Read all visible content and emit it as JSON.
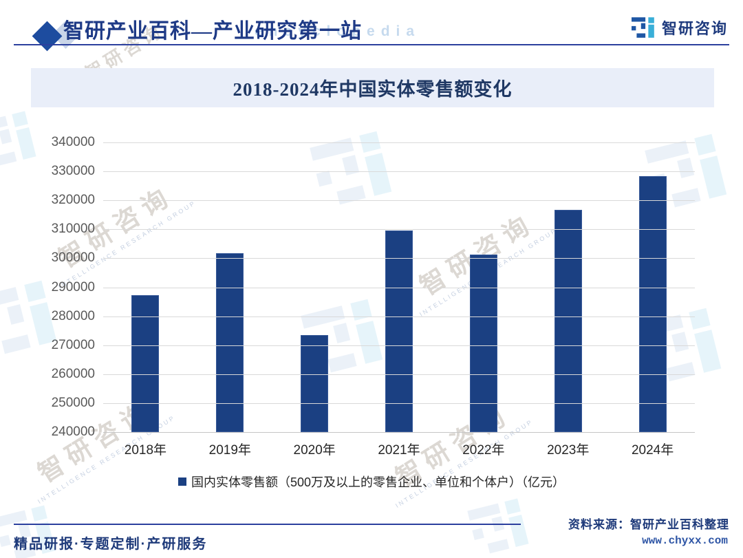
{
  "header": {
    "brand_title": "智研产业百科—产业研究第一站",
    "logo_text": "智研咨询",
    "watermark_en": "encyclopedia"
  },
  "chart_data": {
    "type": "bar",
    "title": "2018-2024年中国实体零售额变化",
    "categories": [
      "2018年",
      "2019年",
      "2020年",
      "2021年",
      "2022年",
      "2023年",
      "2024年"
    ],
    "values": [
      287300,
      301700,
      273400,
      309700,
      301300,
      316700,
      328400
    ],
    "legend": "国内实体零售额（500万及以上的零售企业、单位和个体户）（亿元）",
    "xlabel": "",
    "ylabel": "",
    "ylim": [
      240000,
      340000
    ],
    "ytick_step": 10000,
    "grid": true,
    "legend_position": "bottom",
    "bar_color": "#1B4082"
  },
  "footer": {
    "services": "精品研报·专题定制·产研服务",
    "source": "资料来源：智研产业百科整理",
    "website": "www.chyxx.com"
  },
  "watermark": {
    "text": "智研咨询",
    "subtext": "INTELLIGENCE RESEARCH GROUP"
  },
  "colors": {
    "bar": "#1B4082",
    "accent_blue": "#2B3F9E",
    "navy_text": "#1E3A7A",
    "banner_bg": "#E9EEF9",
    "grid_line": "#D9D9D9",
    "link_blue": "#2E55A5",
    "logo_blue": "#1E56A4",
    "logo_cyan": "#39AFD8"
  }
}
